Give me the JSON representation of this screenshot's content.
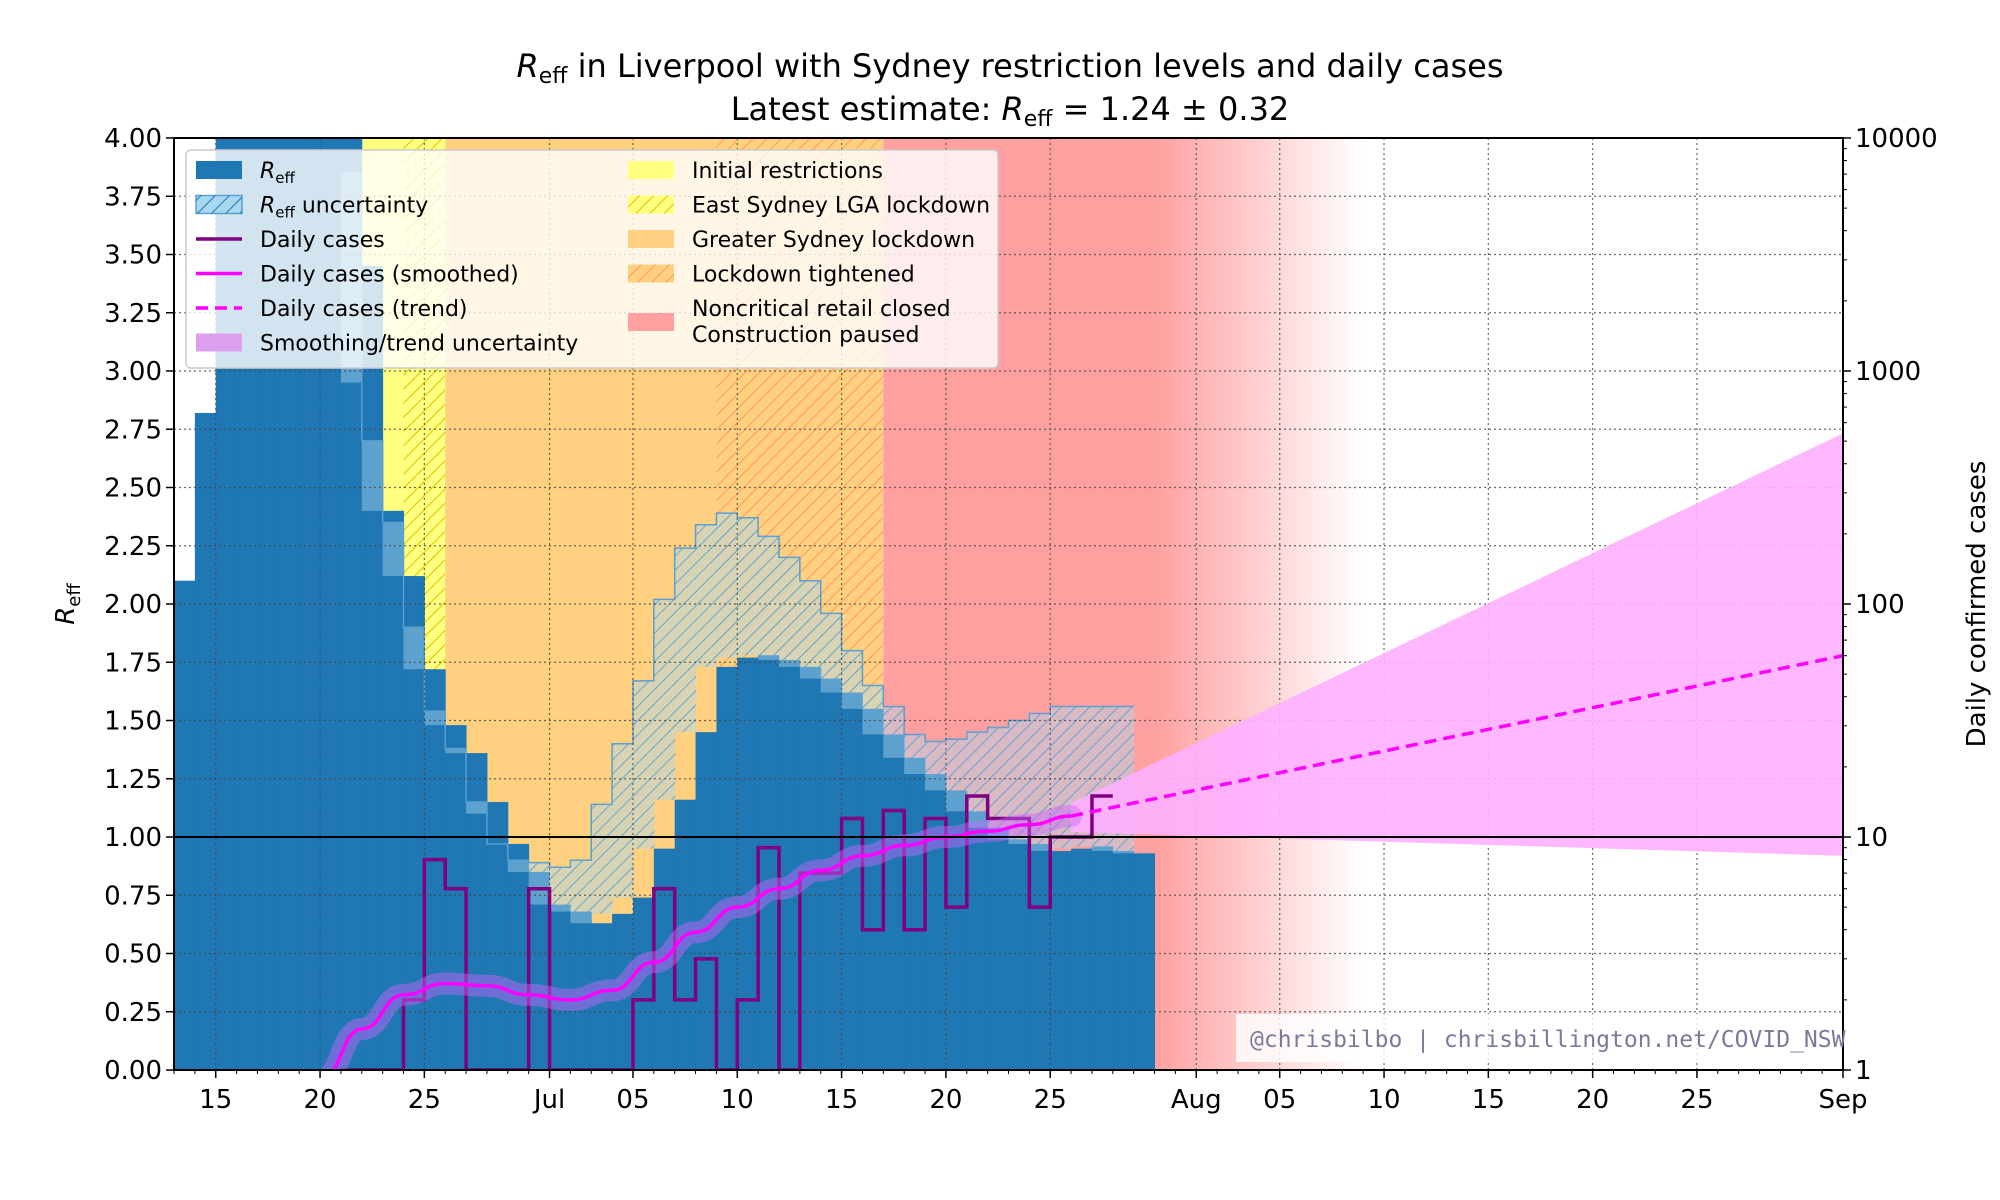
{
  "chart_data": {
    "type": "bar",
    "title_r": "R",
    "title_sub": "eff",
    "title_rest": " in Liverpool with Sydney restriction levels and daily cases",
    "subtitle_prefix": "Latest estimate: ",
    "subtitle_r": "R",
    "subtitle_sub": "eff",
    "subtitle_value": " = 1.24 ± 0.32",
    "ylabel_r": "R",
    "ylabel_sub": "eff",
    "y2label": "Daily confirmed cases",
    "watermark": "@chrisbilbo | chrisbillington.net/COVID_NSW",
    "ylim": [
      0,
      4
    ],
    "y2lim": [
      1,
      10000
    ],
    "y2_scale": "log",
    "grid": true,
    "legend_placement": "top-left",
    "yticks": [
      "0.00",
      "0.25",
      "0.50",
      "0.75",
      "1.00",
      "1.25",
      "1.50",
      "1.75",
      "2.00",
      "2.25",
      "2.50",
      "2.75",
      "3.00",
      "3.25",
      "3.50",
      "3.75",
      "4.00"
    ],
    "y2ticks": [
      {
        "value": 1,
        "label": "1"
      },
      {
        "value": 10,
        "label": "10"
      },
      {
        "value": 100,
        "label": "100"
      },
      {
        "value": 1000,
        "label": "1000"
      },
      {
        "value": 10000,
        "label": "10000"
      }
    ],
    "xlim": [
      "2021-06-13",
      "2021-09-01"
    ],
    "xticks": [
      {
        "date": "2021-06-15",
        "label": "15"
      },
      {
        "date": "2021-06-20",
        "label": "20"
      },
      {
        "date": "2021-06-25",
        "label": "25"
      },
      {
        "date": "2021-07-01",
        "label": "Jul"
      },
      {
        "date": "2021-07-05",
        "label": "05"
      },
      {
        "date": "2021-07-10",
        "label": "10"
      },
      {
        "date": "2021-07-15",
        "label": "15"
      },
      {
        "date": "2021-07-20",
        "label": "20"
      },
      {
        "date": "2021-07-25",
        "label": "25"
      },
      {
        "date": "2021-08-01",
        "label": "Aug"
      },
      {
        "date": "2021-08-05",
        "label": "05"
      },
      {
        "date": "2021-08-10",
        "label": "10"
      },
      {
        "date": "2021-08-15",
        "label": "15"
      },
      {
        "date": "2021-08-20",
        "label": "20"
      },
      {
        "date": "2021-08-25",
        "label": "25"
      },
      {
        "date": "2021-09-01",
        "label": "Sep"
      }
    ],
    "restrictions": [
      {
        "name": "Initial restrictions",
        "start": "2021-06-21",
        "end": "2021-06-26",
        "color": "#ffff80",
        "hatched": false
      },
      {
        "name": "East Sydney LGA lockdown",
        "start": "2021-06-24",
        "end": "2021-06-26",
        "color": "#ffff80",
        "hatched": true
      },
      {
        "name": "Greater Sydney lockdown",
        "start": "2021-06-26",
        "end": "2021-07-09",
        "color": "#ffd080",
        "hatched": false
      },
      {
        "name": "Lockdown tightened",
        "start": "2021-07-09",
        "end": "2021-07-17",
        "color": "#ffd080",
        "hatched": true
      },
      {
        "name": "Noncritical retail closed\nConstruction paused",
        "start": "2021-07-17",
        "end": "2021-07-30",
        "color": "#ffa0a0",
        "hatched": false
      }
    ],
    "restriction_fade_end": "2021-08-09",
    "reff_dates_start": "2021-06-13",
    "reff": [
      2.1,
      2.82,
      4.0,
      4.0,
      4.0,
      4.0,
      4.0,
      4.0,
      3.45,
      2.4,
      2.12,
      1.72,
      1.48,
      1.36,
      1.15,
      0.97,
      0.85,
      0.71,
      0.68,
      0.63,
      0.67,
      0.74,
      0.95,
      1.16,
      1.45,
      1.73,
      1.77,
      1.78,
      1.76,
      1.73,
      1.68,
      1.62,
      1.55,
      1.44,
      1.34,
      1.27,
      1.2,
      1.11,
      1.04,
      0.99,
      0.97,
      0.94,
      0.95,
      0.96,
      0.94,
      0.93
    ],
    "reff_upper": [
      2.12,
      2.84,
      4.0,
      4.0,
      4.0,
      4.0,
      4.0,
      4.0,
      3.85,
      2.7,
      2.35,
      1.9,
      1.54,
      1.38,
      1.1,
      0.97,
      0.9,
      0.89,
      0.87,
      0.9,
      1.14,
      1.4,
      1.67,
      2.02,
      2.24,
      2.34,
      2.39,
      2.37,
      2.29,
      2.2,
      2.1,
      1.96,
      1.8,
      1.65,
      1.56,
      1.44,
      1.41,
      1.42,
      1.45,
      1.47,
      1.5,
      1.53,
      1.56
    ],
    "reff_lower": [
      2.1,
      2.82,
      4.0,
      4.0,
      4.0,
      4.0,
      4.0,
      4.0,
      3.45,
      2.4,
      2.12,
      1.72,
      1.48,
      1.36,
      1.15,
      0.97,
      0.85,
      0.71,
      0.68,
      0.63,
      0.67,
      0.74,
      0.95,
      1.16,
      1.45,
      1.73,
      1.77,
      1.78,
      1.76,
      1.73,
      1.68,
      1.62,
      1.55,
      1.44,
      1.34,
      1.27,
      1.2,
      1.11,
      1.04,
      0.99,
      0.97,
      0.94,
      0.95,
      0.96,
      0.94,
      0.93
    ],
    "reff_upper_start": "2021-06-16",
    "reff_uncert_start": "2021-06-21",
    "reff_uncert": [
      [
        2.95,
        3.85
      ],
      [
        2.4,
        2.7
      ],
      [
        2.12,
        2.35
      ],
      [
        1.72,
        1.9
      ],
      [
        1.48,
        1.54
      ],
      [
        1.36,
        1.38
      ],
      [
        1.15,
        1.1
      ],
      [
        0.97,
        0.97
      ],
      [
        0.85,
        0.9
      ],
      [
        0.71,
        0.89
      ],
      [
        0.68,
        0.87
      ],
      [
        0.63,
        0.9
      ],
      [
        0.67,
        1.14
      ],
      [
        0.74,
        1.4
      ],
      [
        0.95,
        1.67
      ],
      [
        1.16,
        2.02
      ],
      [
        1.45,
        2.24
      ],
      [
        1.73,
        2.34
      ],
      [
        1.77,
        2.39
      ],
      [
        1.78,
        2.37
      ],
      [
        1.76,
        2.29
      ],
      [
        1.73,
        2.2
      ],
      [
        1.68,
        2.1
      ],
      [
        1.62,
        1.96
      ],
      [
        1.55,
        1.8
      ],
      [
        1.44,
        1.65
      ],
      [
        1.34,
        1.56
      ],
      [
        1.27,
        1.44
      ],
      [
        1.2,
        1.41
      ],
      [
        1.11,
        1.42
      ],
      [
        1.04,
        1.45
      ],
      [
        0.99,
        1.47
      ],
      [
        0.97,
        1.5
      ],
      [
        0.94,
        1.53
      ],
      [
        0.95,
        1.56
      ],
      [
        0.96,
        1.56
      ],
      [
        0.94,
        1.56
      ],
      [
        0.93,
        1.56
      ]
    ],
    "reff_line_start": "2021-06-21",
    "reff_line": [
      4.0,
      3.45,
      2.4,
      2.12,
      1.72,
      1.48,
      1.36,
      1.15,
      0.97,
      0.85,
      0.71,
      0.68,
      0.63,
      0.67,
      0.74,
      0.95,
      1.16,
      1.45,
      1.73,
      1.77,
      1.78,
      1.76,
      1.73,
      1.68,
      1.62,
      1.55,
      1.44,
      1.34,
      1.27,
      1.2,
      1.11,
      1.04,
      0.99,
      0.97,
      0.94,
      0.95,
      0.96,
      0.94,
      0.93
    ],
    "reff_est_end": "2021-07-26",
    "daily_cases_start": "2021-06-21",
    "daily_cases": [
      0,
      0,
      0,
      2,
      8,
      6,
      0,
      0,
      0,
      6,
      0,
      0,
      0,
      0,
      2,
      6,
      2,
      3,
      0,
      2,
      9,
      0,
      7,
      7,
      12,
      4,
      13,
      4,
      12,
      5,
      15,
      12,
      12,
      5,
      10,
      10,
      15
    ],
    "smoothed_cases": [
      {
        "date": "2021-06-20",
        "value": 0.9
      },
      {
        "date": "2021-06-22",
        "value": 1.5
      },
      {
        "date": "2021-06-24",
        "value": 2.1
      },
      {
        "date": "2021-06-26",
        "value": 2.35
      },
      {
        "date": "2021-06-28",
        "value": 2.3
      },
      {
        "date": "2021-06-30",
        "value": 2.1
      },
      {
        "date": "2021-07-02",
        "value": 2.0
      },
      {
        "date": "2021-07-04",
        "value": 2.2
      },
      {
        "date": "2021-07-06",
        "value": 2.9
      },
      {
        "date": "2021-07-08",
        "value": 3.9
      },
      {
        "date": "2021-07-10",
        "value": 5.0
      },
      {
        "date": "2021-07-12",
        "value": 6.0
      },
      {
        "date": "2021-07-14",
        "value": 7.2
      },
      {
        "date": "2021-07-16",
        "value": 8.3
      },
      {
        "date": "2021-07-18",
        "value": 9.2
      },
      {
        "date": "2021-07-20",
        "value": 10.0
      },
      {
        "date": "2021-07-22",
        "value": 10.6
      },
      {
        "date": "2021-07-24",
        "value": 11.3
      },
      {
        "date": "2021-07-26",
        "value": 12.3
      }
    ],
    "trend": [
      {
        "date": "2021-07-26",
        "value": 12.3
      },
      {
        "date": "2021-09-01",
        "value": 60
      }
    ],
    "trend_band_upper": [
      {
        "date": "2021-07-26",
        "value": 14
      },
      {
        "date": "2021-09-01",
        "value": 540
      }
    ],
    "trend_band_lower": [
      {
        "date": "2021-07-26",
        "value": 10.5
      },
      {
        "date": "2021-09-01",
        "value": 8.3
      }
    ],
    "colors": {
      "reff": "#1f77b4",
      "reff_uncert": "#1f77b4",
      "daily_cases": "#800080",
      "smoothed": "#ff00ff",
      "trend_band": "#ffb0ff",
      "smooth_band": "#cc66ff"
    },
    "legend": {
      "left": [
        {
          "kind": "reff",
          "label_r": "R",
          "label_sub": "eff",
          "label_rest": ""
        },
        {
          "kind": "reff_uncert",
          "label_r": "R",
          "label_sub": "eff",
          "label_rest": " uncertainty"
        },
        {
          "kind": "daily",
          "label": "Daily cases"
        },
        {
          "kind": "smoothed",
          "label": "Daily cases (smoothed)"
        },
        {
          "kind": "trend",
          "label": "Daily cases (trend)"
        },
        {
          "kind": "band",
          "label": "Smoothing/trend uncertainty"
        }
      ],
      "right": [
        {
          "kind": "yellow",
          "label": "Initial restrictions"
        },
        {
          "kind": "yellow_hatch",
          "label": "East Sydney LGA lockdown"
        },
        {
          "kind": "orange",
          "label": "Greater Sydney lockdown"
        },
        {
          "kind": "orange_hatch",
          "label": "Lockdown tightened"
        },
        {
          "kind": "red",
          "label": "Noncritical retail closed",
          "label2": "Construction paused"
        }
      ]
    }
  }
}
